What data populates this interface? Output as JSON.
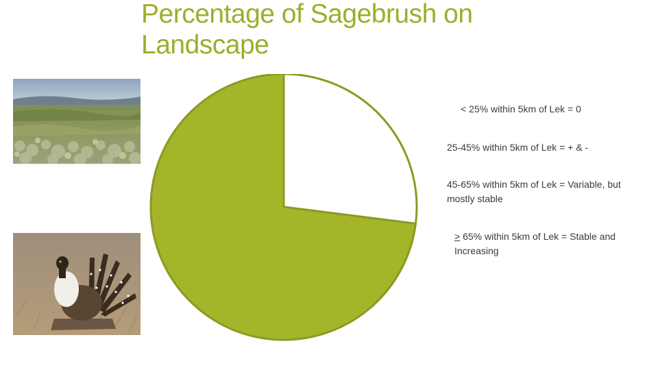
{
  "slide": {
    "title": "Percentage of Sagebrush on Landscape"
  },
  "images": {
    "landscape": "sagebrush-landscape-photo",
    "grouse": "sage-grouse-photo"
  },
  "legend": {
    "item1": "< 25% within 5km of Lek = 0",
    "item2": "25-45% within 5km of Lek = + & -",
    "item3": "45-65% within 5km of Lek = Variable, but mostly stable",
    "item4_symbol": ">",
    "item4_rest": " 65%  within 5km of Lek = Stable and Increasing"
  },
  "chart_data": {
    "type": "pie",
    "values": [
      27,
      73
    ],
    "colors": [
      "#ffffff",
      "#a4b529"
    ],
    "edge_color": "#8a9a22"
  }
}
